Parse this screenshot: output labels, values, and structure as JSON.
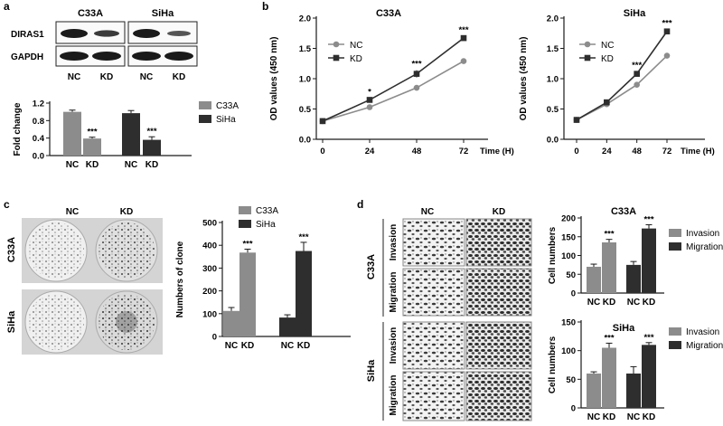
{
  "panels": {
    "a": {
      "letter": "a",
      "blot": {
        "cell_lines": [
          "C33A",
          "SiHa"
        ],
        "proteins": [
          "DIRAS1",
          "GAPDH"
        ],
        "lanes": [
          "NC",
          "KD"
        ]
      }
    },
    "b": {
      "letter": "b"
    },
    "c": {
      "letter": "c",
      "images": {
        "columns": [
          "NC",
          "KD"
        ],
        "rows": [
          "C33A",
          "SiHa"
        ]
      }
    },
    "d": {
      "letter": "d",
      "images": {
        "columns": [
          "NC",
          "KD"
        ],
        "rows": [
          "Invasion",
          "Migration"
        ],
        "groups": [
          "C33A",
          "SiHa"
        ]
      }
    }
  },
  "colors": {
    "light": "#8c8c8c",
    "dark": "#2e2e2e",
    "axis": "#1a1a1a"
  },
  "chart_data": [
    {
      "id": "a",
      "type": "bar",
      "title": "",
      "ylabel": "Fold change",
      "xlabel": "",
      "ylim": [
        0,
        1.2
      ],
      "yticks": [
        "0.0",
        "0.4",
        "0.8",
        "1.2"
      ],
      "yticks_values": [
        0,
        0.4,
        0.8,
        1.2
      ],
      "categories": [
        "NC",
        "KD",
        "NC",
        "KD"
      ],
      "bars": [
        {
          "value": 1.0,
          "err": 0.04,
          "series": 0,
          "sig": ""
        },
        {
          "value": 0.39,
          "err": 0.03,
          "series": 0,
          "sig": "***"
        },
        {
          "value": 0.97,
          "err": 0.06,
          "series": 1,
          "sig": ""
        },
        {
          "value": 0.36,
          "err": 0.07,
          "series": 1,
          "sig": "***"
        }
      ],
      "legend": [
        "C33A",
        "SiHa"
      ],
      "legend_position": "right"
    },
    {
      "id": "b1",
      "type": "line",
      "title": "C33A",
      "ylabel": "OD values (450 nm)",
      "xlabel": "Time (H)",
      "ylim": [
        0,
        2.0
      ],
      "yticks": [
        "0.0",
        "0.5",
        "1.0",
        "1.5",
        "2.0"
      ],
      "yticks_values": [
        0,
        0.5,
        1.0,
        1.5,
        2.0
      ],
      "x": [
        0,
        24,
        48,
        72
      ],
      "xticks": [
        "0",
        "24",
        "48",
        "72"
      ],
      "series": [
        {
          "name": "NC",
          "values": [
            0.3,
            0.53,
            0.85,
            1.29
          ],
          "err": [
            0.02,
            0.02,
            0.03,
            0.02
          ]
        },
        {
          "name": "KD",
          "values": [
            0.3,
            0.65,
            1.08,
            1.67
          ],
          "err": [
            0.02,
            0.03,
            0.06,
            0.03
          ]
        }
      ],
      "sig": [
        "",
        "*",
        "***",
        "***"
      ],
      "legend_position": "top-left"
    },
    {
      "id": "b2",
      "type": "line",
      "title": "SiHa",
      "ylabel": "OD values (450 nm)",
      "xlabel": "Time (H)",
      "ylim": [
        0,
        2.0
      ],
      "yticks": [
        "0.0",
        "0.5",
        "1.0",
        "1.5",
        "2.0"
      ],
      "yticks_values": [
        0,
        0.5,
        1.0,
        1.5,
        2.0
      ],
      "x": [
        0,
        24,
        48,
        72
      ],
      "xticks": [
        "0",
        "24",
        "48",
        "72"
      ],
      "series": [
        {
          "name": "NC",
          "values": [
            0.32,
            0.58,
            0.9,
            1.38
          ],
          "err": [
            0.02,
            0.02,
            0.02,
            0.04
          ]
        },
        {
          "name": "KD",
          "values": [
            0.32,
            0.61,
            1.08,
            1.78
          ],
          "err": [
            0.02,
            0.02,
            0.04,
            0.03
          ]
        }
      ],
      "sig": [
        "",
        "",
        "***",
        "***"
      ],
      "legend_position": "top-left"
    },
    {
      "id": "c",
      "type": "bar",
      "title": "",
      "ylabel": "Numbers of clone",
      "xlabel": "",
      "ylim": [
        0,
        500
      ],
      "yticks": [
        "0",
        "100",
        "200",
        "300",
        "400",
        "500"
      ],
      "yticks_values": [
        0,
        100,
        200,
        300,
        400,
        500
      ],
      "categories": [
        "NC",
        "KD",
        "NC",
        "KD"
      ],
      "bars": [
        {
          "value": 112,
          "err": 15,
          "series": 0,
          "sig": ""
        },
        {
          "value": 368,
          "err": 15,
          "series": 0,
          "sig": "***"
        },
        {
          "value": 83,
          "err": 12,
          "series": 1,
          "sig": ""
        },
        {
          "value": 375,
          "err": 38,
          "series": 1,
          "sig": "***"
        }
      ],
      "legend": [
        "C33A",
        "SiHa"
      ],
      "legend_position": "top-right"
    },
    {
      "id": "d1",
      "type": "bar",
      "title": "C33A",
      "ylabel": "Cell numbers",
      "xlabel": "",
      "ylim": [
        0,
        200
      ],
      "yticks": [
        "0",
        "50",
        "100",
        "150",
        "200"
      ],
      "yticks_values": [
        0,
        50,
        100,
        150,
        200
      ],
      "categories": [
        "NC",
        "KD",
        "NC",
        "KD"
      ],
      "bars": [
        {
          "value": 70,
          "err": 7,
          "series": 0,
          "sig": ""
        },
        {
          "value": 135,
          "err": 8,
          "series": 0,
          "sig": "***"
        },
        {
          "value": 75,
          "err": 9,
          "series": 1,
          "sig": ""
        },
        {
          "value": 172,
          "err": 10,
          "series": 1,
          "sig": "***"
        }
      ],
      "legend": [
        "Invasion",
        "Migration"
      ],
      "legend_position": "right"
    },
    {
      "id": "d2",
      "type": "bar",
      "title": "SiHa",
      "ylabel": "Cell numbers",
      "xlabel": "",
      "ylim": [
        0,
        150
      ],
      "yticks": [
        "0",
        "50",
        "100",
        "150"
      ],
      "yticks_values": [
        0,
        50,
        100,
        150
      ],
      "categories": [
        "NC",
        "KD",
        "NC",
        "KD"
      ],
      "bars": [
        {
          "value": 60,
          "err": 3,
          "series": 0,
          "sig": ""
        },
        {
          "value": 105,
          "err": 8,
          "series": 0,
          "sig": "***"
        },
        {
          "value": 60,
          "err": 12,
          "series": 1,
          "sig": ""
        },
        {
          "value": 110,
          "err": 4,
          "series": 1,
          "sig": "***"
        }
      ],
      "legend": [
        "Invasion",
        "Migration"
      ],
      "legend_position": "right"
    }
  ]
}
